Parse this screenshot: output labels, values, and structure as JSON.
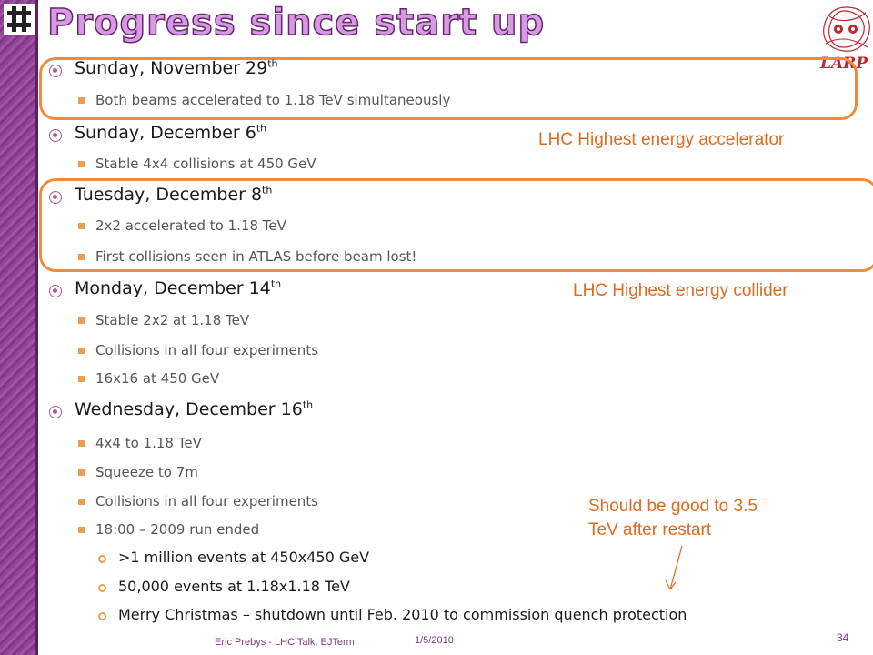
{
  "slide": {
    "title": "Progress since start up",
    "logo_text": "LARP"
  },
  "items": [
    {
      "level": 1,
      "text": "Sunday, November 29",
      "sup": "th"
    },
    {
      "level": 2,
      "text": "Both beams accelerated to 1.18 TeV simultaneously"
    },
    {
      "level": 1,
      "text": "Sunday, December 6",
      "sup": "th"
    },
    {
      "level": 2,
      "text": "Stable 4x4 collisions at 450 GeV"
    },
    {
      "level": 1,
      "text": "Tuesday, December 8",
      "sup": "th"
    },
    {
      "level": 2,
      "text": "2x2 accelerated to 1.18 TeV"
    },
    {
      "level": 2,
      "text": "First collisions seen in ATLAS before beam lost!"
    },
    {
      "level": 1,
      "text": "Monday, December 14",
      "sup": "th"
    },
    {
      "level": 2,
      "text": "Stable 2x2 at 1.18 TeV"
    },
    {
      "level": 2,
      "text": "Collisions in all four experiments"
    },
    {
      "level": 2,
      "text": "16x16 at 450 GeV"
    },
    {
      "level": 1,
      "text": "Wednesday, December 16",
      "sup": "th"
    },
    {
      "level": 2,
      "text": "4x4 to 1.18 TeV"
    },
    {
      "level": 2,
      "text": "Squeeze to 7m"
    },
    {
      "level": 2,
      "text": "Collisions in all four experiments"
    },
    {
      "level": 2,
      "text": "18:00 – 2009 run ended"
    },
    {
      "level": 3,
      "text": ">1 million events at 450x450 GeV"
    },
    {
      "level": 3,
      "text": "50,000 events at 1.18x1.18 TeV"
    },
    {
      "level": 3,
      "text": "Merry Christmas – shutdown until Feb. 2010 to commission quench protection"
    }
  ],
  "notes": {
    "accelerator": "LHC Highest energy accelerator",
    "collider": "LHC Highest energy collider",
    "restart_line1": "Should be good to 3.5",
    "restart_line2": "TeV after restart"
  },
  "footer": {
    "author": "Eric Prebys - LHC Talk, EJTerm",
    "date": "1/5/2010",
    "page": "34"
  },
  "colors": {
    "accent_orange": "#f28a3c",
    "sidebar_purple": "#8a3a8e",
    "title_fill": "#d59be0"
  }
}
